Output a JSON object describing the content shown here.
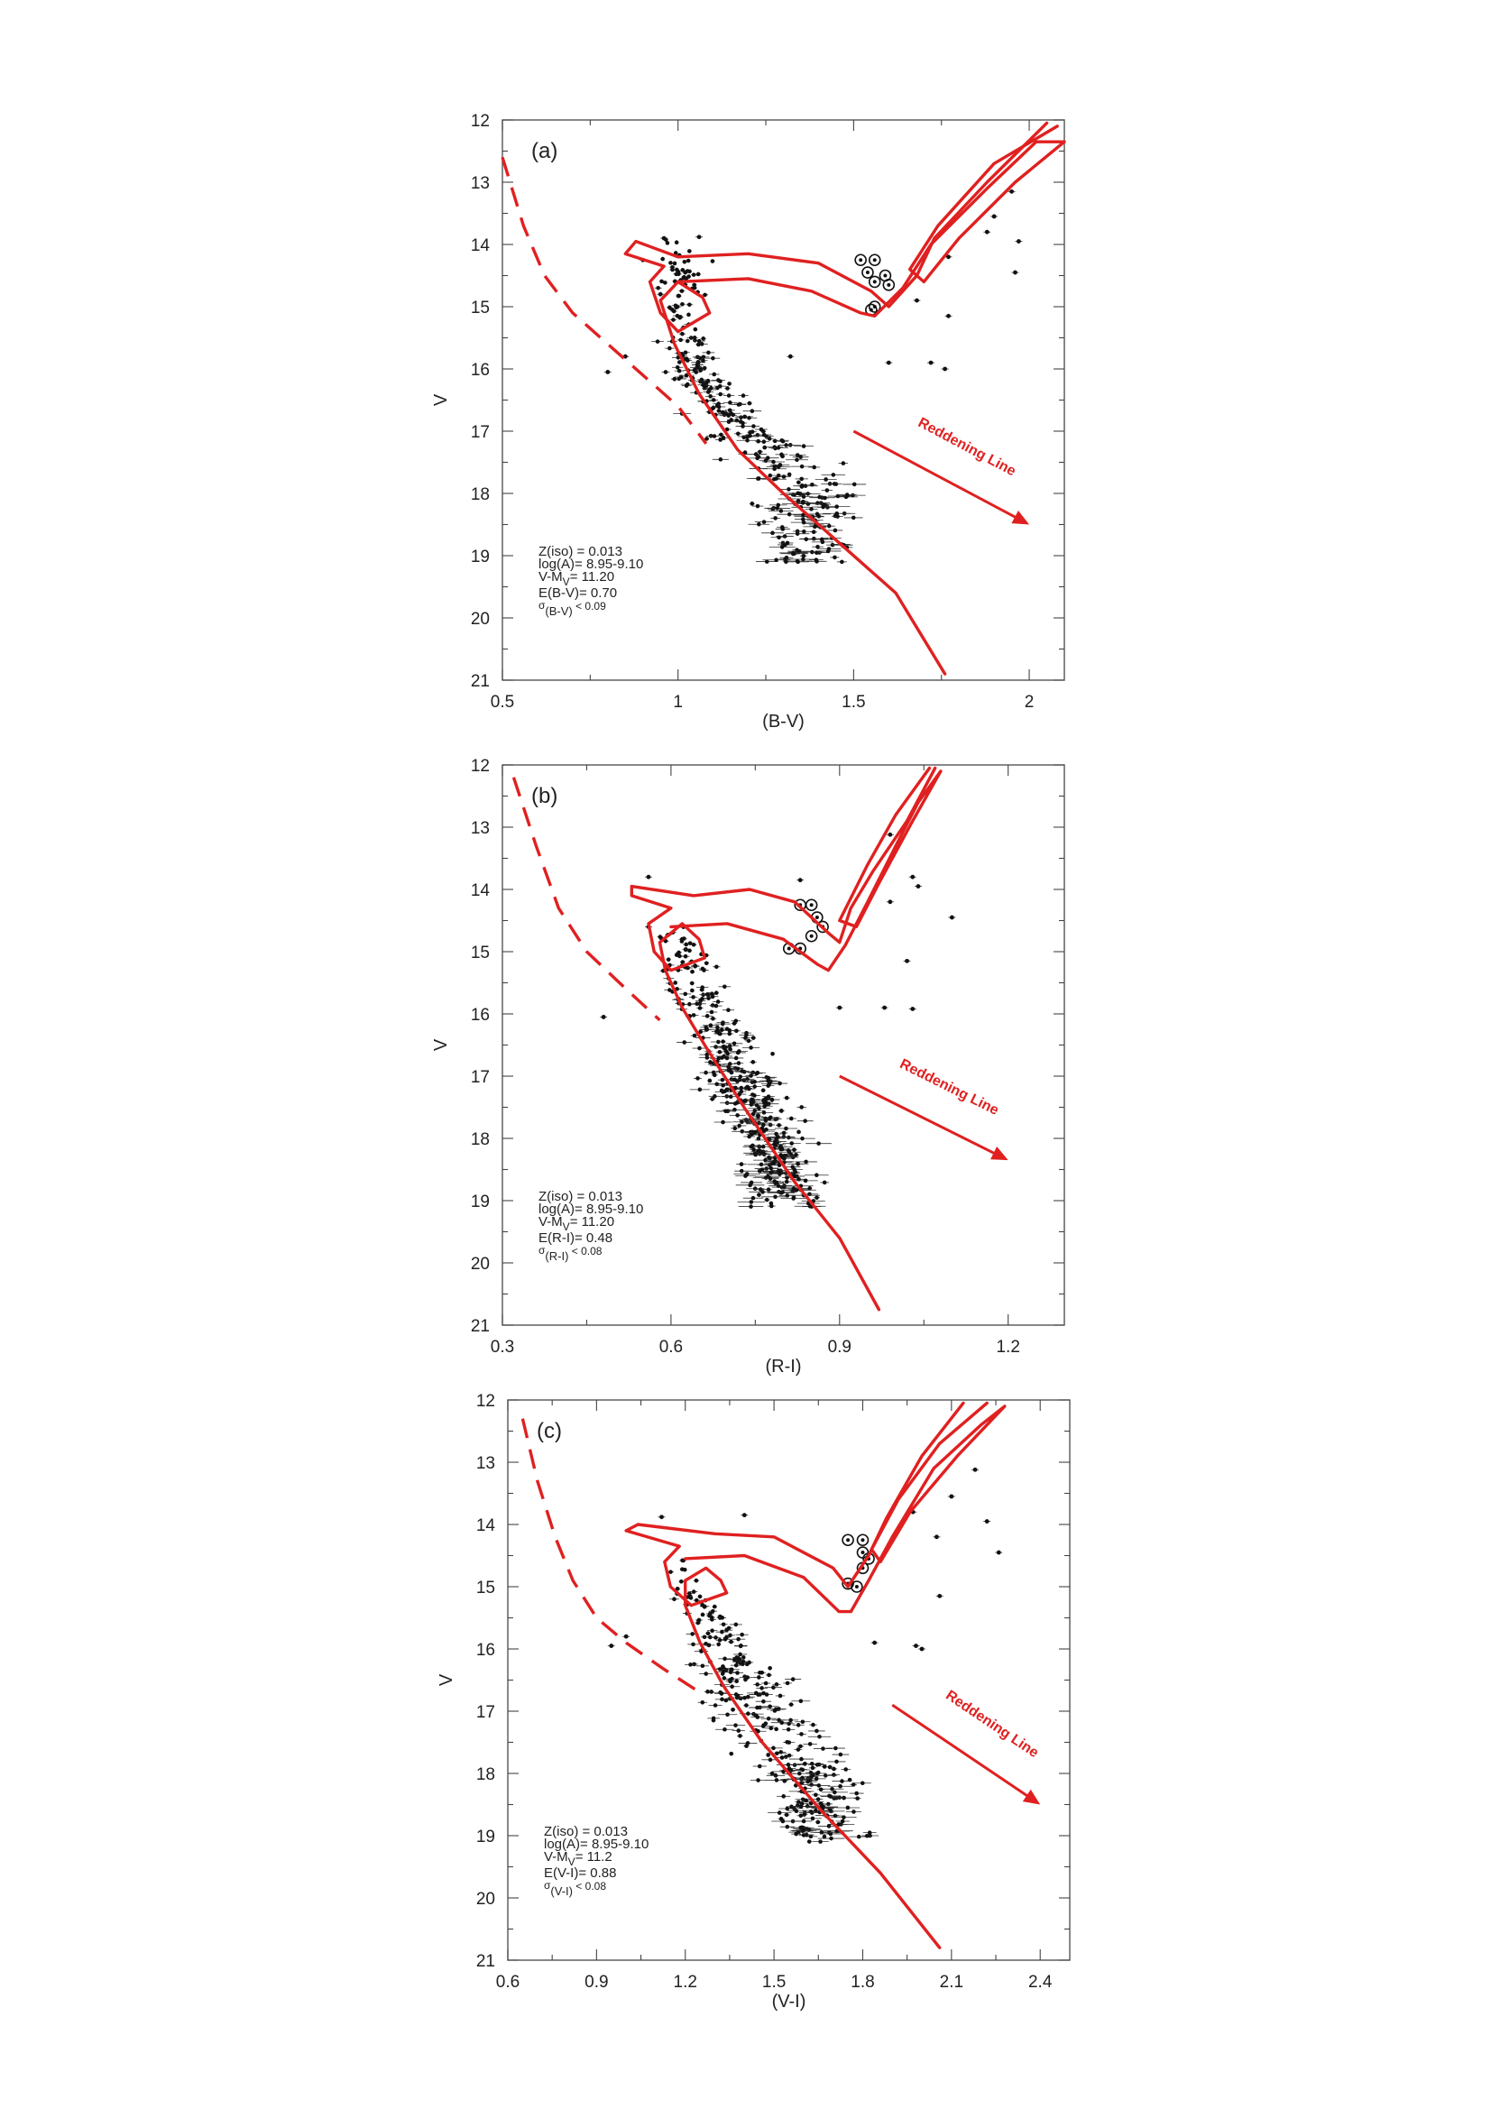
{
  "chart_data": [
    {
      "type": "scatter",
      "panel_label": "(a)",
      "xlabel": "(B-V)",
      "ylabel": "V",
      "xlim": [
        0.5,
        2.1
      ],
      "ylim": [
        21,
        12
      ],
      "y_inverted": true,
      "xticks": [
        0.5,
        1,
        1.5,
        2
      ],
      "xtick_labels": [
        "0.5",
        "1",
        "1.5",
        "2"
      ],
      "yticks": [
        12,
        13,
        14,
        15,
        16,
        17,
        18,
        19,
        20,
        21
      ],
      "ytick_labels": [
        "12",
        "13",
        "14",
        "15",
        "16",
        "17",
        "18",
        "19",
        "20",
        "21"
      ],
      "color_param_label": "E(B-V)= 0.70",
      "sigma_prefix": "σ",
      "sigma_sub": "(B-V)",
      "sigma_suffix": " < 0.09",
      "reddening_label": "Reddening Line",
      "reddening_arrow": [
        [
          1.5,
          17.0
        ],
        [
          2.0,
          18.5
        ]
      ],
      "dashed_zams": [
        [
          0.5,
          12.6
        ],
        [
          0.56,
          13.7
        ],
        [
          0.62,
          14.5
        ],
        [
          0.7,
          15.1
        ],
        [
          0.8,
          15.6
        ],
        [
          0.9,
          16.1
        ],
        [
          1.0,
          16.6
        ],
        [
          1.08,
          17.2
        ]
      ],
      "isochrone": [
        [
          1.76,
          20.9
        ],
        [
          1.62,
          19.6
        ],
        [
          1.46,
          18.8
        ],
        [
          1.3,
          18.0
        ],
        [
          1.17,
          17.3
        ],
        [
          1.06,
          16.4
        ],
        [
          0.99,
          15.6
        ],
        [
          0.95,
          14.9
        ],
        [
          1.0,
          14.6
        ],
        [
          1.07,
          14.85
        ],
        [
          1.09,
          15.1
        ],
        [
          1.0,
          15.4
        ],
        [
          0.95,
          15.1
        ],
        [
          0.92,
          14.6
        ],
        [
          0.96,
          14.35
        ],
        [
          0.85,
          14.15
        ],
        [
          0.88,
          13.95
        ],
        [
          1.0,
          14.2
        ],
        [
          1.2,
          14.15
        ],
        [
          1.4,
          14.3
        ],
        [
          1.55,
          14.75
        ],
        [
          1.6,
          15.0
        ],
        [
          1.68,
          14.5
        ],
        [
          1.73,
          13.9
        ],
        [
          1.88,
          13.0
        ],
        [
          2.05,
          12.05
        ]
      ],
      "isochrone_outer": [
        [
          1.0,
          14.6
        ],
        [
          1.2,
          14.55
        ],
        [
          1.38,
          14.75
        ],
        [
          1.52,
          15.1
        ],
        [
          1.56,
          15.15
        ],
        [
          1.64,
          14.7
        ],
        [
          1.72,
          14.0
        ],
        [
          1.88,
          13.1
        ],
        [
          2.02,
          12.35
        ],
        [
          2.1,
          12.35
        ],
        [
          1.96,
          13.0
        ],
        [
          1.8,
          13.9
        ],
        [
          1.7,
          14.6
        ],
        [
          1.66,
          14.4
        ],
        [
          1.74,
          13.7
        ],
        [
          1.9,
          12.7
        ],
        [
          2.08,
          12.1
        ]
      ],
      "giants": [
        [
          1.52,
          14.25
        ],
        [
          1.56,
          14.25
        ],
        [
          1.54,
          14.45
        ],
        [
          1.56,
          14.6
        ],
        [
          1.59,
          14.5
        ],
        [
          1.6,
          14.65
        ],
        [
          1.56,
          15.0
        ],
        [
          1.55,
          15.05
        ]
      ],
      "field_stars": [
        [
          0.96,
          13.9
        ],
        [
          1.06,
          13.88
        ],
        [
          0.9,
          14.25
        ],
        [
          0.95,
          14.8
        ],
        [
          1.6,
          15.9
        ],
        [
          1.72,
          15.9
        ],
        [
          1.76,
          16.0
        ],
        [
          1.77,
          15.15
        ],
        [
          1.77,
          14.2
        ],
        [
          1.9,
          13.55
        ],
        [
          1.88,
          13.8
        ],
        [
          1.95,
          13.15
        ],
        [
          1.96,
          14.45
        ],
        [
          1.97,
          13.95
        ],
        [
          1.68,
          14.9
        ],
        [
          1.32,
          15.8
        ],
        [
          0.8,
          16.05
        ],
        [
          0.85,
          15.8
        ]
      ],
      "ms_x_range": [
        [
          13.9,
          0.9,
          1.12
        ],
        [
          15,
          0.92,
          1.1
        ],
        [
          16,
          0.93,
          1.15
        ],
        [
          17,
          1.0,
          1.35
        ],
        [
          18,
          1.15,
          1.6
        ],
        [
          19,
          1.18,
          1.55
        ]
      ],
      "ms_count": 360,
      "seed": 11
    },
    {
      "type": "scatter",
      "panel_label": "(b)",
      "xlabel": "(R-I)",
      "ylabel": "V",
      "xlim": [
        0.3,
        1.3
      ],
      "ylim": [
        21,
        12
      ],
      "y_inverted": true,
      "xticks": [
        0.3,
        0.6,
        0.9,
        1.2
      ],
      "xtick_labels": [
        "0.3",
        "0.6",
        "0.9",
        "1.2"
      ],
      "yticks": [
        12,
        13,
        14,
        15,
        16,
        17,
        18,
        19,
        20,
        21
      ],
      "ytick_labels": [
        "12",
        "13",
        "14",
        "15",
        "16",
        "17",
        "18",
        "19",
        "20",
        "21"
      ],
      "color_param_label": "E(R-I)= 0.48",
      "sigma_prefix": "σ",
      "sigma_sub": "(R-I)",
      "sigma_suffix": " < 0.08",
      "reddening_label": "Reddening Line",
      "reddening_arrow": [
        [
          0.9,
          17.0
        ],
        [
          1.2,
          18.35
        ]
      ],
      "dashed_zams": [
        [
          0.32,
          12.2
        ],
        [
          0.36,
          13.3
        ],
        [
          0.4,
          14.3
        ],
        [
          0.45,
          15.0
        ],
        [
          0.52,
          15.6
        ],
        [
          0.58,
          16.1
        ]
      ],
      "isochrone": [
        [
          0.97,
          20.75
        ],
        [
          0.9,
          19.6
        ],
        [
          0.82,
          18.7
        ],
        [
          0.73,
          17.5
        ],
        [
          0.66,
          16.5
        ],
        [
          0.62,
          15.9
        ],
        [
          0.59,
          15.3
        ],
        [
          0.58,
          14.85
        ],
        [
          0.62,
          14.55
        ],
        [
          0.65,
          14.8
        ],
        [
          0.66,
          15.1
        ],
        [
          0.6,
          15.3
        ],
        [
          0.57,
          15.0
        ],
        [
          0.56,
          14.55
        ],
        [
          0.6,
          14.3
        ],
        [
          0.53,
          14.1
        ],
        [
          0.53,
          13.95
        ],
        [
          0.64,
          14.1
        ],
        [
          0.74,
          14.0
        ],
        [
          0.82,
          14.2
        ],
        [
          0.88,
          14.7
        ],
        [
          0.9,
          14.85
        ],
        [
          0.92,
          14.3
        ],
        [
          0.96,
          13.7
        ],
        [
          1.02,
          12.9
        ],
        [
          1.07,
          12.05
        ]
      ],
      "isochrone_outer": [
        [
          0.6,
          14.6
        ],
        [
          0.7,
          14.55
        ],
        [
          0.8,
          14.8
        ],
        [
          0.86,
          15.2
        ],
        [
          0.88,
          15.3
        ],
        [
          0.91,
          14.9
        ],
        [
          0.95,
          14.2
        ],
        [
          1.0,
          13.3
        ],
        [
          1.04,
          12.6
        ],
        [
          1.08,
          12.1
        ],
        [
          1.03,
          12.9
        ],
        [
          0.97,
          13.9
        ],
        [
          0.93,
          14.6
        ],
        [
          0.9,
          14.5
        ],
        [
          0.95,
          13.6
        ],
        [
          1.0,
          12.8
        ],
        [
          1.06,
          12.05
        ]
      ],
      "giants": [
        [
          0.83,
          14.25
        ],
        [
          0.85,
          14.25
        ],
        [
          0.86,
          14.45
        ],
        [
          0.87,
          14.6
        ],
        [
          0.85,
          14.75
        ],
        [
          0.83,
          14.95
        ],
        [
          0.81,
          14.95
        ]
      ],
      "field_stars": [
        [
          0.56,
          13.8
        ],
        [
          0.83,
          13.85
        ],
        [
          0.99,
          13.12
        ],
        [
          1.03,
          13.8
        ],
        [
          1.04,
          13.95
        ],
        [
          0.99,
          14.2
        ],
        [
          1.1,
          14.45
        ],
        [
          1.02,
          15.15
        ],
        [
          0.9,
          15.9
        ],
        [
          0.98,
          15.9
        ],
        [
          1.03,
          15.92
        ],
        [
          0.48,
          16.05
        ],
        [
          0.62,
          14.8
        ],
        [
          0.56,
          14.6
        ]
      ],
      "ms_x_range": [
        [
          14.5,
          0.55,
          0.66
        ],
        [
          15,
          0.56,
          0.68
        ],
        [
          16,
          0.57,
          0.75
        ],
        [
          17,
          0.62,
          0.83
        ],
        [
          18,
          0.68,
          0.88
        ],
        [
          19,
          0.7,
          0.9
        ]
      ],
      "ms_count": 420,
      "seed": 23
    },
    {
      "type": "scatter",
      "panel_label": "(c)",
      "xlabel": "(V-I)",
      "ylabel": "V",
      "xlim": [
        0.6,
        2.5
      ],
      "ylim": [
        21,
        12
      ],
      "y_inverted": true,
      "xticks": [
        0.6,
        0.9,
        1.2,
        1.5,
        1.8,
        2.1,
        2.4
      ],
      "xtick_labels": [
        "0.6",
        "0.9",
        "1.2",
        "1.5",
        "1.8",
        "2.1",
        "2.4"
      ],
      "yticks": [
        12,
        13,
        14,
        15,
        16,
        17,
        18,
        19,
        20,
        21
      ],
      "ytick_labels": [
        "12",
        "13",
        "14",
        "15",
        "16",
        "17",
        "18",
        "19",
        "20",
        "21"
      ],
      "color_param_label": "E(V-I)= 0.88",
      "sigma_prefix": "σ",
      "sigma_sub": "(V-I)",
      "sigma_suffix": " < 0.08",
      "reddening_label": "Reddening Line",
      "reddening_arrow": [
        [
          1.9,
          16.9
        ],
        [
          2.4,
          18.5
        ]
      ],
      "dashed_zams": [
        [
          0.65,
          12.3
        ],
        [
          0.7,
          13.3
        ],
        [
          0.76,
          14.2
        ],
        [
          0.82,
          14.9
        ],
        [
          0.9,
          15.5
        ],
        [
          1.0,
          15.9
        ],
        [
          1.12,
          16.3
        ],
        [
          1.25,
          16.7
        ]
      ],
      "isochrone": [
        [
          2.06,
          20.8
        ],
        [
          1.86,
          19.6
        ],
        [
          1.66,
          18.6
        ],
        [
          1.46,
          17.5
        ],
        [
          1.33,
          16.6
        ],
        [
          1.25,
          15.9
        ],
        [
          1.2,
          15.3
        ],
        [
          1.2,
          14.9
        ],
        [
          1.27,
          14.7
        ],
        [
          1.32,
          14.9
        ],
        [
          1.34,
          15.1
        ],
        [
          1.22,
          15.3
        ],
        [
          1.15,
          15.0
        ],
        [
          1.13,
          14.6
        ],
        [
          1.18,
          14.35
        ],
        [
          1.0,
          14.1
        ],
        [
          1.04,
          14.0
        ],
        [
          1.3,
          14.15
        ],
        [
          1.5,
          14.2
        ],
        [
          1.7,
          14.7
        ],
        [
          1.75,
          15.0
        ],
        [
          1.82,
          14.5
        ],
        [
          1.88,
          13.9
        ],
        [
          2.0,
          12.9
        ],
        [
          2.14,
          12.05
        ]
      ],
      "isochrone_outer": [
        [
          1.2,
          14.55
        ],
        [
          1.4,
          14.5
        ],
        [
          1.6,
          14.85
        ],
        [
          1.72,
          15.4
        ],
        [
          1.76,
          15.4
        ],
        [
          1.82,
          14.9
        ],
        [
          1.9,
          14.2
        ],
        [
          2.04,
          13.1
        ],
        [
          2.2,
          12.4
        ],
        [
          2.28,
          12.1
        ],
        [
          2.12,
          12.9
        ],
        [
          1.96,
          13.8
        ],
        [
          1.86,
          14.6
        ],
        [
          1.83,
          14.4
        ],
        [
          1.92,
          13.6
        ],
        [
          2.06,
          12.7
        ],
        [
          2.22,
          12.05
        ]
      ],
      "giants": [
        [
          1.75,
          14.25
        ],
        [
          1.8,
          14.25
        ],
        [
          1.8,
          14.45
        ],
        [
          1.82,
          14.55
        ],
        [
          1.8,
          14.7
        ],
        [
          1.75,
          14.95
        ],
        [
          1.78,
          15.0
        ]
      ],
      "field_stars": [
        [
          1.12,
          13.88
        ],
        [
          1.4,
          13.85
        ],
        [
          2.18,
          13.12
        ],
        [
          2.1,
          13.55
        ],
        [
          2.22,
          13.95
        ],
        [
          2.05,
          14.2
        ],
        [
          2.26,
          14.45
        ],
        [
          1.97,
          13.8
        ],
        [
          2.06,
          15.15
        ],
        [
          1.84,
          15.9
        ],
        [
          1.98,
          15.95
        ],
        [
          2.0,
          16.0
        ],
        [
          0.95,
          15.95
        ],
        [
          1.0,
          15.8
        ]
      ],
      "ms_x_range": [
        [
          14.5,
          1.08,
          1.3
        ],
        [
          15,
          1.1,
          1.32
        ],
        [
          16,
          1.14,
          1.5
        ],
        [
          17,
          1.2,
          1.72
        ],
        [
          18,
          1.38,
          1.85
        ],
        [
          19,
          1.45,
          1.9
        ]
      ],
      "ms_count": 340,
      "seed": 37
    }
  ],
  "shared_params": {
    "z_label": "Z(iso) = 0.013",
    "age_label": "log(A)= 8.95-9.10",
    "dm_prefix": "V-M",
    "dm_sub": "V",
    "dm_values": [
      "= 11.20",
      "= 11.20",
      "= 11.2"
    ]
  },
  "colors": {
    "isochrone": "#e02020",
    "stars": "#111111",
    "frame": "#555555"
  }
}
